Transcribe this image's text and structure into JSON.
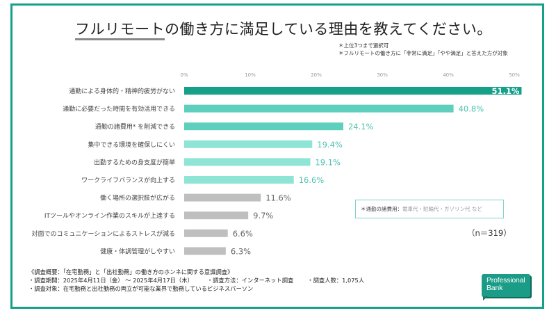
{
  "title": {
    "underlined": "フルリモート",
    "rest": "の働き方に満足している理由を教えてください。"
  },
  "notes": [
    "＊上位3つまで選択可",
    "＊フルリモートの働き方に「非常に満足」「やや満足」と答えた方が対象"
  ],
  "colors": {
    "frame": "#15a08a",
    "top1": "#15a08a",
    "top2_3": "#5ecfbd",
    "top4_6": "#8fe5d5",
    "other": "#bfbfbf",
    "label_teal": "#4fc3b0",
    "label_gray": "#666666"
  },
  "chart_data": {
    "type": "bar",
    "orientation": "horizontal",
    "title": "フルリモートの働き方に満足している理由を教えてください。",
    "xlabel": "",
    "ylabel": "",
    "xlim": [
      0,
      50
    ],
    "ticks": [
      0,
      10,
      20,
      30,
      40,
      50
    ],
    "tick_labels": [
      "0%",
      "10%",
      "20%",
      "30%",
      "40%",
      "50%"
    ],
    "grid": false,
    "categories": [
      "通勤による身体的・精神的疲労がない",
      "通勤に必要だった時間を有効活用できる",
      "通勤の諸費用* を削減できる",
      "集中できる環境を確保しにくい",
      "出勤するための身支度が簡単",
      "ワークライフバランスが向上する",
      "働く場所の選択肢が広がる",
      "ITツールやオンライン作業のスキルが上達する",
      "対面でのコミュニケーションによるストレスが減る",
      "健康・体調管理がしやすい"
    ],
    "values": [
      51.1,
      40.8,
      24.1,
      19.4,
      19.1,
      16.6,
      11.6,
      9.7,
      6.6,
      6.3
    ],
    "value_labels": [
      "51.1%",
      "40.8%",
      "24.1%",
      "19.4%",
      "19.1%",
      "16.6%",
      "11.6%",
      "9.7%",
      "6.6%",
      "6.3%"
    ],
    "color_group": [
      "top1",
      "top2_3",
      "top2_3",
      "top4_6",
      "top4_6",
      "top4_6",
      "other",
      "other",
      "other",
      "other"
    ],
    "n_label": "（n＝319）"
  },
  "notebox": {
    "bold": "＊通勤の諸費用：",
    "muted": "電車代・駐輪代・ガソリン代 など"
  },
  "footer": {
    "line1": "《調査概要：「在宅勤務」と「出社勤務」の働き方のホンネに関する意識調査》",
    "period": "・調査期間：2025年4月11日（金） ～ 2025年4月17日（木）",
    "method": "・調査方法：インターネット調査",
    "count": "・調査人数：1,075人",
    "target": "・調査対象：在宅勤務と出社勤務の両立が可能な業界で勤務しているビジネスパーソン"
  },
  "logo": {
    "line1": "Professional",
    "line2": "Bank"
  }
}
